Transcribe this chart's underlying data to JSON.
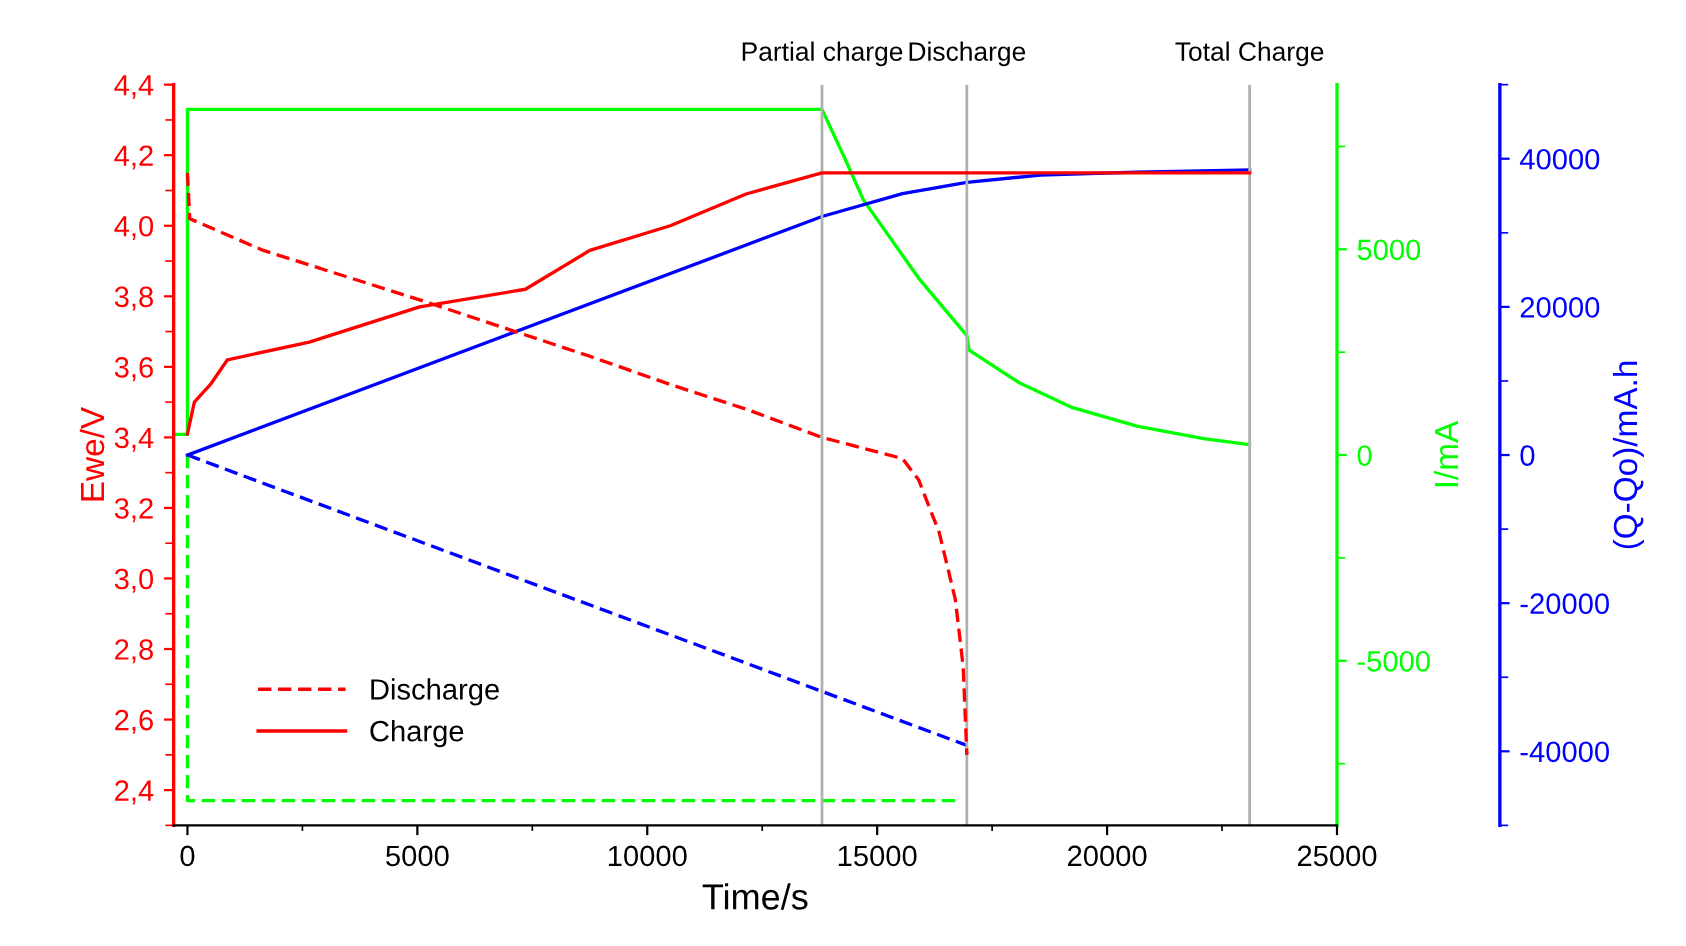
{
  "chart_data": {
    "type": "line",
    "xlabel": "Time/s",
    "ylabel": "Ewe/V",
    "y2label": "I/mA",
    "y3label": "(Q-Qo)/mA.h",
    "xlim": [
      -300,
      25000
    ],
    "xticks": [
      0,
      5000,
      10000,
      15000,
      20000,
      25000
    ],
    "ylim": [
      2.3,
      4.4
    ],
    "yticks": [
      {
        "value": 2.4,
        "label": "2,4"
      },
      {
        "value": 2.6,
        "label": "2,6"
      },
      {
        "value": 2.8,
        "label": "2,8"
      },
      {
        "value": 3.0,
        "label": "3,0"
      },
      {
        "value": 3.2,
        "label": "3,2"
      },
      {
        "value": 3.4,
        "label": "3,4"
      },
      {
        "value": 3.6,
        "label": "3,6"
      },
      {
        "value": 3.8,
        "label": "3,8"
      },
      {
        "value": 4.0,
        "label": "4,0"
      },
      {
        "value": 4.2,
        "label": "4,2"
      },
      {
        "value": 4.4,
        "label": "4,4"
      }
    ],
    "y2lim": [
      -9000,
      9000
    ],
    "y2ticks": [
      -5000,
      0,
      5000
    ],
    "y3lim": [
      -50000,
      50000
    ],
    "y3ticks": [
      -40000,
      -20000,
      0,
      20000,
      40000
    ],
    "legend": "bottom left",
    "grid": false,
    "marker": "none",
    "ref_lines": [
      {
        "axis": "x",
        "value": 13800,
        "label": "Partial charge",
        "color": "#b0b0b0"
      },
      {
        "axis": "x",
        "value": 16950,
        "label": "Discharge",
        "color": "#b0b0b0"
      },
      {
        "axis": "x",
        "value": 23100,
        "label": "Total Charge",
        "color": "#b0b0b0"
      }
    ],
    "series": [
      {
        "name": "Discharge",
        "color": "#ff0000",
        "axis": "y",
        "line_style": "dashed",
        "x": [
          0,
          50,
          1650,
          5050,
          8750,
          10500,
          12150,
          13800,
          15550,
          15900,
          16350,
          16700,
          16870,
          16950
        ],
        "values": [
          4.15,
          4.02,
          3.93,
          3.79,
          3.63,
          3.55,
          3.48,
          3.4,
          3.34,
          3.28,
          3.13,
          2.94,
          2.75,
          2.5
        ]
      },
      {
        "name": "Charge",
        "color": "#ff0000",
        "axis": "y",
        "line_style": "solid",
        "x": [
          0,
          150,
          500,
          870,
          2650,
          5050,
          7350,
          8750,
          10500,
          12150,
          13800,
          23100
        ],
        "values": [
          3.41,
          3.5,
          3.55,
          3.62,
          3.67,
          3.77,
          3.82,
          3.93,
          4.0,
          4.09,
          4.15,
          4.15
        ]
      },
      {
        "color": "#00ff00",
        "axis": "y2",
        "line_style": "dashed",
        "x": [
          0,
          0,
          16800
        ],
        "values": [
          0,
          -8400,
          -8400
        ]
      },
      {
        "color": "#00ff00",
        "axis": "y2",
        "line_style": "solid",
        "x": [
          -300,
          0,
          0,
          13800,
          14300,
          14700,
          15900,
          16950,
          17000,
          18100,
          19250,
          20650,
          22100,
          23100
        ],
        "values": [
          500,
          500,
          8400,
          8400,
          7200,
          6200,
          4300,
          2900,
          2550,
          1750,
          1150,
          700,
          400,
          250
        ]
      },
      {
        "color": "#0000ff",
        "axis": "y3",
        "line_style": "dashed",
        "x": [
          0,
          16950
        ],
        "values": [
          0,
          -39200
        ]
      },
      {
        "color": "#0000ff",
        "axis": "y3",
        "line_style": "solid",
        "x": [
          0,
          13800,
          15550,
          16950,
          18550,
          20650,
          23100
        ],
        "values": [
          0,
          32200,
          35300,
          36800,
          37800,
          38200,
          38500
        ]
      }
    ]
  }
}
